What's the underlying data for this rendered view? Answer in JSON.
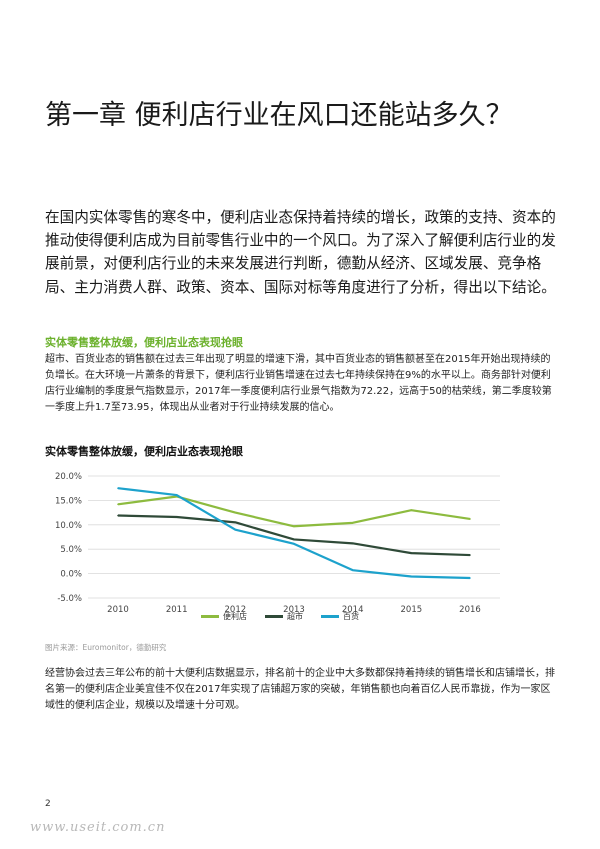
{
  "chapter": {
    "title": "第一章 便利店行业在风口还能站多久？"
  },
  "intro": "在国内实体零售的寒冬中，便利店业态保持着持续的增长，政策的支持、资本的推动使得便利店成为目前零售行业中的一个风口。为了深入了解便利店行业的发展前景，对便利店行业的未来发展进行判断，德勤从经济、区域发展、竞争格局、主力消费人群、政策、资本、国际对标等角度进行了分析，得出以下结论。",
  "section": {
    "heading": "实体零售整体放缓，便利店业态表现抢眼",
    "body": "超市、百货业态的销售额在过去三年出现了明显的增速下滑，其中百货业态的销售额甚至在2015年开始出现持续的负增长。在大环境一片萧条的背景下，便利店行业销售增速在过去七年持续保持在9%的水平以上。商务部针对便利店行业编制的季度景气指数显示，2017年一季度便利店行业景气指数为72.22，远高于50的枯荣线，第二季度较第一季度上升1.7至73.95，体现出从业者对于行业持续发展的信心。"
  },
  "chart_title": "实体零售整体放缓，便利店业态表现抢眼",
  "chart_data": {
    "type": "line",
    "title": "实体零售整体放缓，便利店业态表现抢眼",
    "x": [
      "2010",
      "2011",
      "2012",
      "2013",
      "2014",
      "2015",
      "2016"
    ],
    "ylim": [
      -5,
      20
    ],
    "yticks": [
      20,
      15,
      10,
      5,
      0,
      -5
    ],
    "ytick_labels": [
      "20.0%",
      "15.0%",
      "10.0%",
      "5.0%",
      "0.0%",
      "-5.0%"
    ],
    "grid": true,
    "legend_position": "bottom",
    "series": [
      {
        "name": "便利店",
        "color": "#8dbb3f",
        "values": [
          14.2,
          15.8,
          12.5,
          9.7,
          10.4,
          13.0,
          11.2
        ]
      },
      {
        "name": "超市",
        "color": "#2f4a38",
        "values": [
          11.9,
          11.6,
          10.5,
          7.0,
          6.2,
          4.2,
          3.8
        ]
      },
      {
        "name": "百货",
        "color": "#1da2cc",
        "values": [
          17.5,
          16.1,
          9.0,
          6.1,
          0.7,
          -0.6,
          -0.9
        ]
      }
    ]
  },
  "source": "图片来源：Euromonitor，德勤研究",
  "body2": "经营协会过去三年公布的前十大便利店数据显示，排名前十的企业中大多数都保持着持续的销售增长和店铺增长，排名第一的便利店企业美宜佳不仅在2017年实现了店铺超万家的突破，年销售额也向着百亿人民币靠拢，作为一家区域性的便利店企业，规模以及增速十分可观。",
  "page_number": "2",
  "watermark": "www.useit.com.cn"
}
